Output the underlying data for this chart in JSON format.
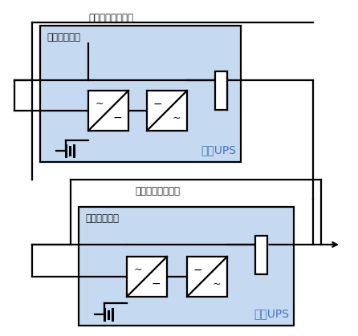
{
  "bg_color": "#ffffff",
  "box_fill_color": "#c5d9f1",
  "box_edge_color": "#000000",
  "line_color": "#000000",
  "text_color_jp": "#1a1a1a",
  "text_color_ups": "#4472c4",
  "label_bypass": "バイパス回路",
  "label_maintenance": "保守バイパス回路",
  "label_standby_ups": "待機UPS",
  "label_normal_ups": "常用UPS",
  "figsize": [
    4.46,
    4.19
  ],
  "dpi": 100
}
